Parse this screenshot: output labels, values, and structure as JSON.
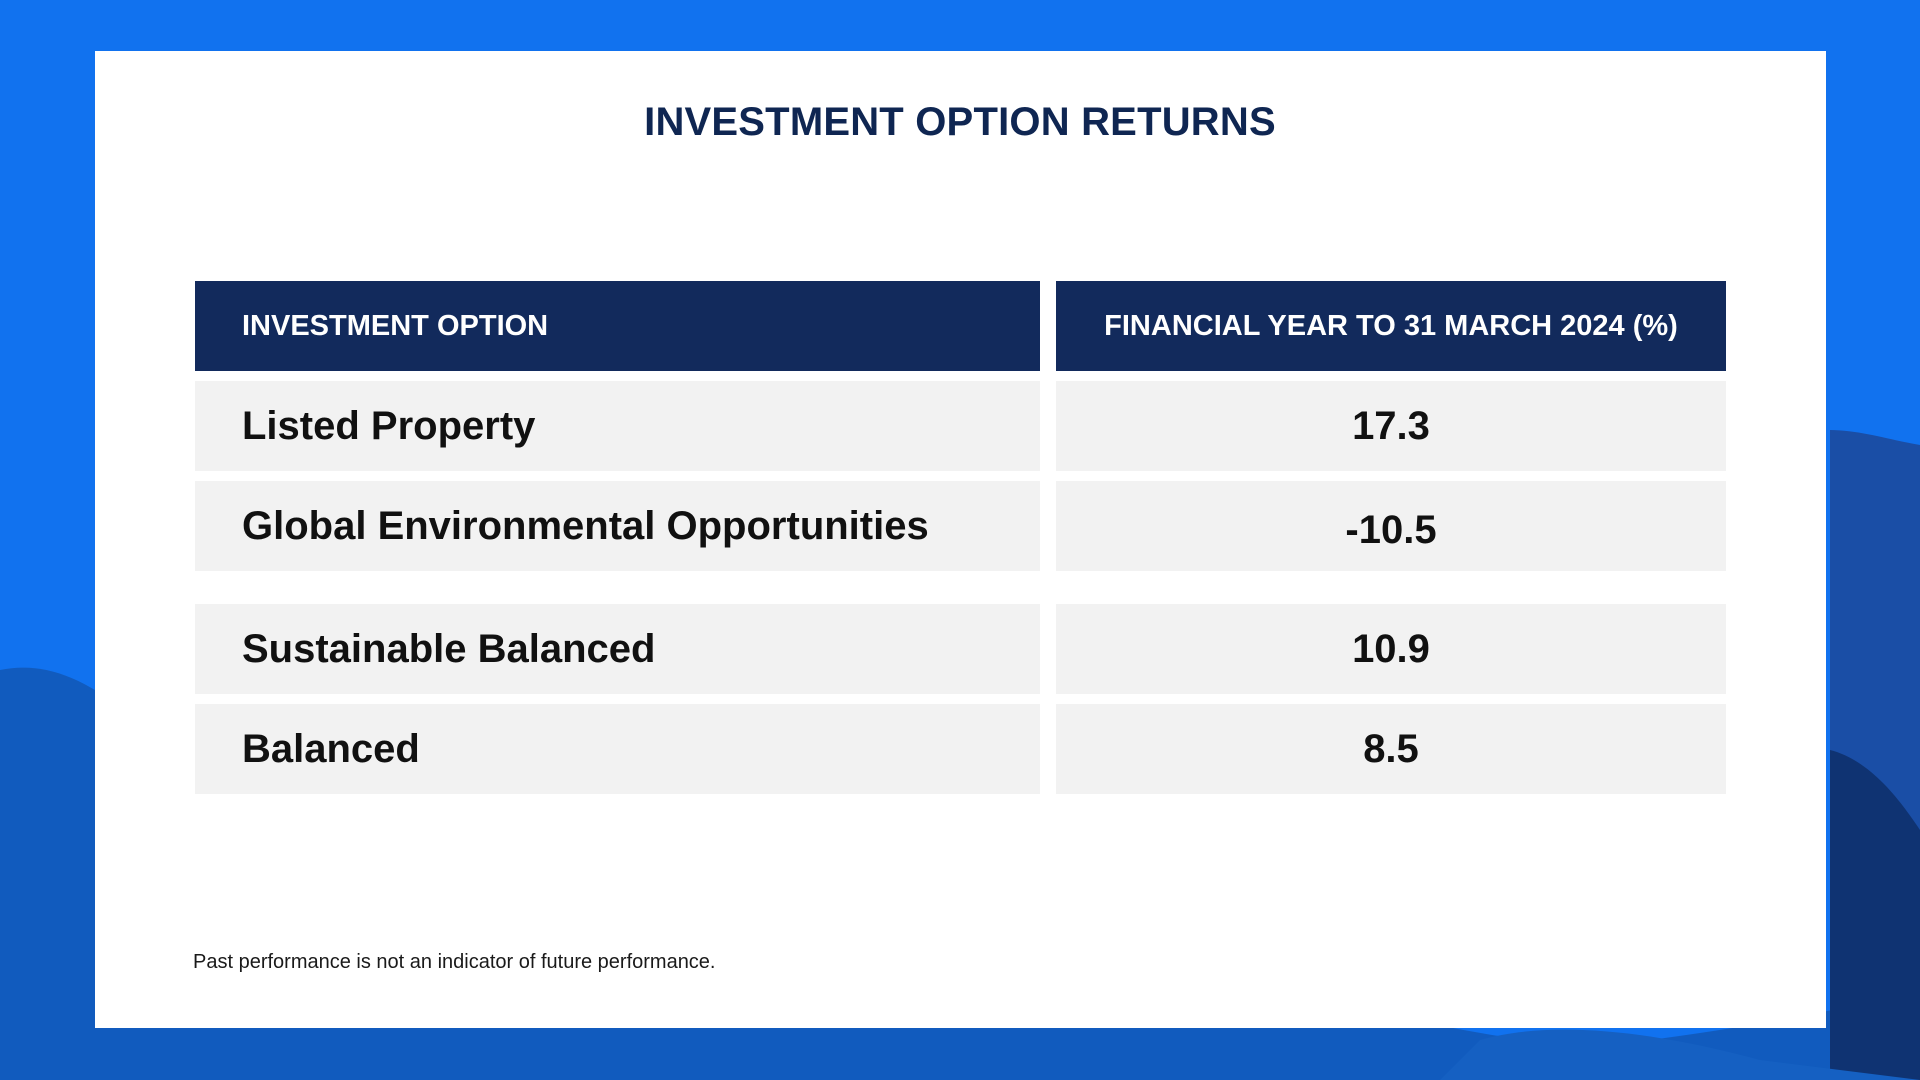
{
  "title": "INVESTMENT OPTION RETURNS",
  "chart_data": {
    "type": "table",
    "title": "INVESTMENT OPTION RETURNS",
    "columns": [
      "INVESTMENT OPTION",
      "FINANCIAL YEAR TO 31 MARCH 2024 (%)"
    ],
    "rows": [
      {
        "option": "Listed Property",
        "value": "17.3"
      },
      {
        "option": "Global Environmental Opportunities",
        "value": "-10.5"
      },
      {
        "option": "Sustainable Balanced",
        "value": "10.9"
      },
      {
        "option": "Balanced",
        "value": "8.5"
      }
    ]
  },
  "footnote": "Past performance is not an indicator of future performance.",
  "colors": {
    "background": "#1172ef",
    "header": "#122a5c",
    "row": "#f2f2f2",
    "title": "#0f2652"
  }
}
